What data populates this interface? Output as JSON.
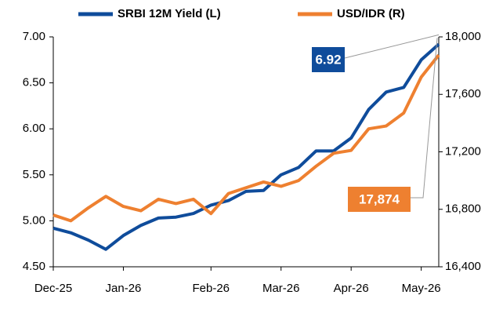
{
  "chart_data": {
    "type": "line",
    "categories": [
      "Dec-25",
      null,
      null,
      null,
      "Jan-26",
      null,
      null,
      null,
      null,
      "Feb-26",
      null,
      null,
      null,
      "Mar-26",
      null,
      null,
      null,
      "Apr-26",
      null,
      null,
      null,
      "May-26",
      null
    ],
    "series": [
      {
        "name": "SRBI 12M Yield (L)",
        "color": "#0f4c9b",
        "values": [
          4.92,
          4.87,
          4.79,
          4.69,
          4.84,
          4.95,
          5.03,
          5.04,
          5.08,
          5.17,
          5.22,
          5.32,
          5.33,
          5.5,
          5.58,
          5.76,
          5.76,
          5.9,
          6.21,
          6.4,
          6.45,
          6.75,
          6.92
        ],
        "value_labels": [
          null,
          null,
          null,
          null,
          null,
          null,
          null,
          null,
          null,
          null,
          null,
          null,
          null,
          null,
          null,
          null,
          null,
          null,
          null,
          null,
          null,
          null,
          "6.92"
        ]
      },
      {
        "name": "USD/IDR (R)",
        "color": "#ee8030",
        "axis": "y2",
        "values": [
          16760,
          16720,
          16810,
          16890,
          16820,
          16790,
          16870,
          16840,
          16870,
          16770,
          16910,
          16950,
          16990,
          16960,
          17000,
          17100,
          17190,
          17210,
          17360,
          17380,
          17470,
          17720,
          17874
        ],
        "value_labels": [
          null,
          null,
          null,
          null,
          null,
          null,
          null,
          null,
          null,
          null,
          null,
          null,
          null,
          null,
          null,
          null,
          null,
          null,
          null,
          null,
          null,
          null,
          "17,874"
        ]
      }
    ],
    "ylim": [
      4.5,
      7.0
    ],
    "yticks": [
      {
        "value": 4.5,
        "label": "4.50"
      },
      {
        "value": 5.0,
        "label": "5.00"
      },
      {
        "value": 5.5,
        "label": "5.50"
      },
      {
        "value": 6.0,
        "label": "6.00"
      },
      {
        "value": 6.5,
        "label": "6.50"
      },
      {
        "value": 7.0,
        "label": "7.00"
      }
    ],
    "y2lim": [
      16400,
      18000
    ],
    "y2ticks": [
      {
        "value": 16400,
        "label": "16,400"
      },
      {
        "value": 16800,
        "label": "16,800"
      },
      {
        "value": 17200,
        "label": "17,200"
      },
      {
        "value": 17600,
        "label": "17,600"
      },
      {
        "value": 18000,
        "label": "18,000"
      }
    ]
  }
}
